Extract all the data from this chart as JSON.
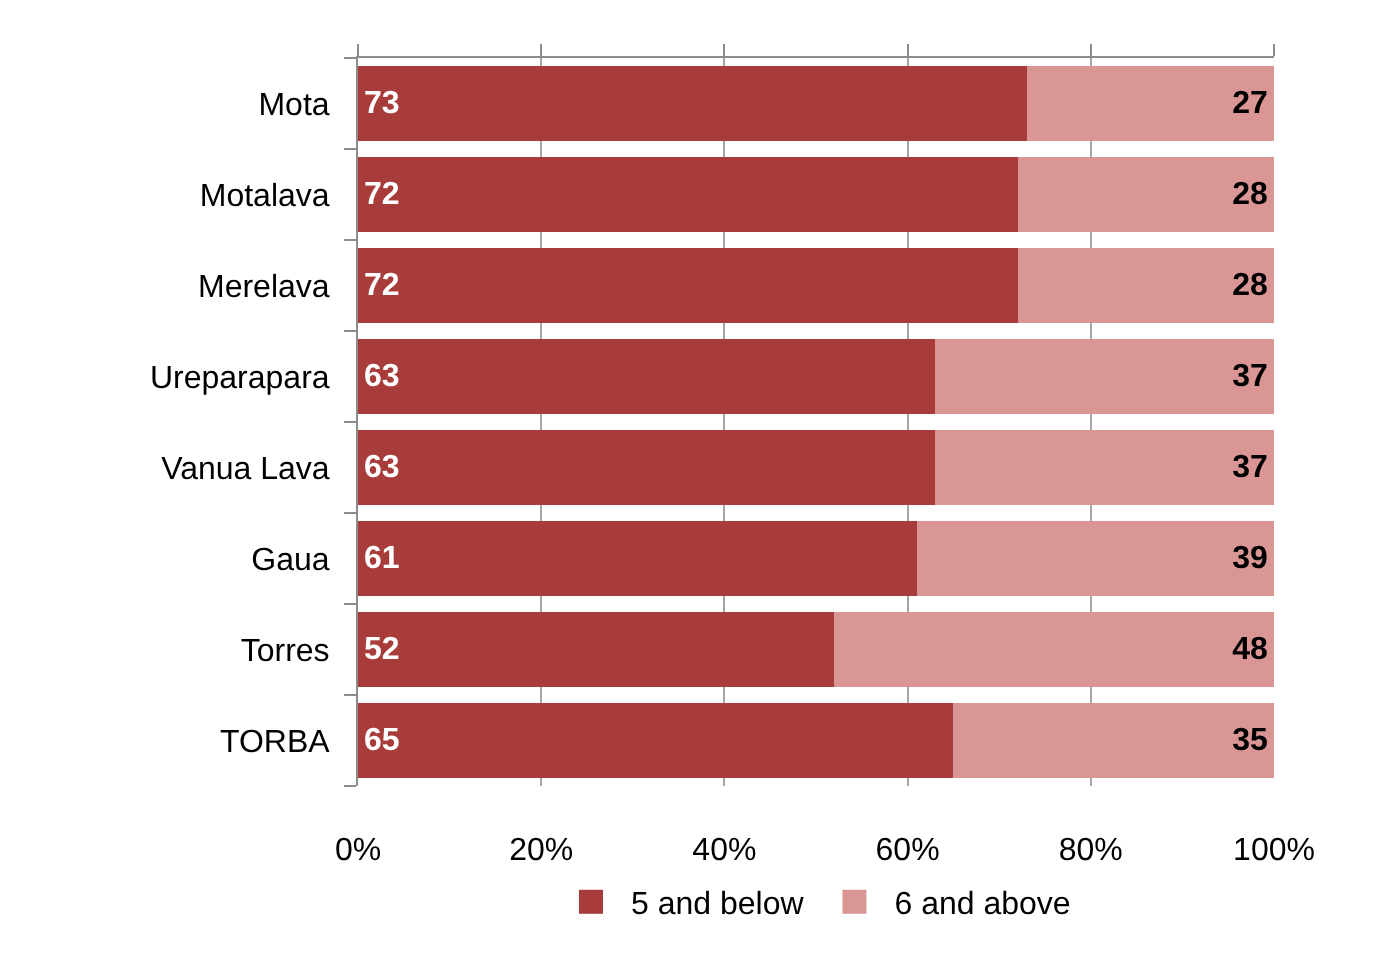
{
  "chart_data": {
    "type": "bar",
    "orientation": "horizontal",
    "stacked": true,
    "categories": [
      "Mota",
      "Motalava",
      "Merelava",
      "Ureparapara",
      "Vanua Lava",
      "Gaua",
      "Torres",
      "TORBA"
    ],
    "series": [
      {
        "name": "5 and below",
        "color": "#a83c3a",
        "values": [
          73,
          72,
          72,
          63,
          63,
          61,
          52,
          65
        ]
      },
      {
        "name": "6 and above",
        "color": "#d99694",
        "values": [
          27,
          28,
          28,
          37,
          37,
          39,
          48,
          35
        ]
      }
    ],
    "xlim": [
      0,
      100
    ],
    "xticks": [
      {
        "value": 0,
        "label": "0%"
      },
      {
        "value": 20,
        "label": "20%"
      },
      {
        "value": 40,
        "label": "40%"
      },
      {
        "value": 60,
        "label": "60%"
      },
      {
        "value": 80,
        "label": "80%"
      },
      {
        "value": 100,
        "label": "100%"
      }
    ],
    "grid": "x",
    "legend": "bottom",
    "data_labels": true
  }
}
